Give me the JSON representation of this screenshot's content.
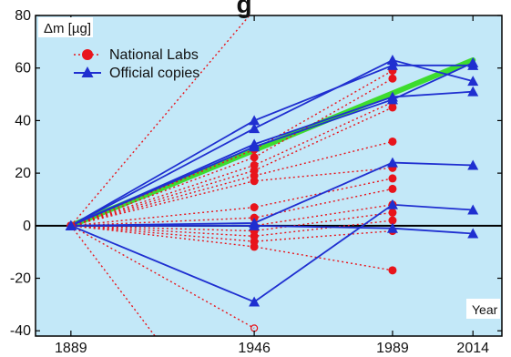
{
  "chart_data": {
    "type": "line",
    "title": "g",
    "ylabel": "Δm [µg]",
    "xlabel": "Year",
    "x_ticks": [
      1889,
      1946,
      1989,
      2014
    ],
    "y_ticks": [
      -40,
      -20,
      0,
      20,
      40,
      60,
      80
    ],
    "xlim": [
      1878,
      2023
    ],
    "ylim": [
      -42,
      80
    ],
    "legend": {
      "placement": "top-left",
      "entries": [
        {
          "label": "National Labs",
          "marker": "circle",
          "color": "#e8141b",
          "style": "dotted"
        },
        {
          "label": "Official copies",
          "marker": "triangle",
          "color": "#1f2fd0",
          "style": "solid"
        }
      ]
    },
    "trend": {
      "x": [
        1889,
        2014
      ],
      "y": [
        0,
        63
      ],
      "color": "#3ddc2e"
    },
    "official_copies": [
      {
        "x": [
          1889,
          1946,
          1989,
          2014
        ],
        "y": [
          0,
          40,
          61,
          61
        ]
      },
      {
        "x": [
          1889,
          1946,
          1989,
          2014
        ],
        "y": [
          0,
          37,
          63,
          55
        ]
      },
      {
        "x": [
          1889,
          1946,
          1989,
          2014
        ],
        "y": [
          0,
          31,
          49,
          51
        ]
      },
      {
        "x": [
          1889,
          1946,
          1989,
          2014
        ],
        "y": [
          0,
          30,
          48,
          62
        ]
      },
      {
        "x": [
          1889,
          1946,
          1989,
          2014
        ],
        "y": [
          0,
          1,
          24,
          23
        ]
      },
      {
        "x": [
          1889,
          1946,
          1989,
          2014
        ],
        "y": [
          0,
          0,
          -1,
          -3
        ]
      },
      {
        "x": [
          1889,
          1946,
          1989,
          2014
        ],
        "y": [
          0,
          -29,
          8,
          6
        ]
      }
    ],
    "national_labs": [
      {
        "x": [
          1889,
          1946,
          1989
        ],
        "y": [
          0,
          29,
          59
        ]
      },
      {
        "x": [
          1889,
          1946,
          1989
        ],
        "y": [
          0,
          26,
          56
        ]
      },
      {
        "x": [
          1889,
          1946,
          1989
        ],
        "y": [
          0,
          23,
          47
        ]
      },
      {
        "x": [
          1889,
          1946,
          1989
        ],
        "y": [
          0,
          21,
          45
        ]
      },
      {
        "x": [
          1889,
          1946,
          1989
        ],
        "y": [
          0,
          19,
          32
        ]
      },
      {
        "x": [
          1889,
          1946,
          1989
        ],
        "y": [
          0,
          17,
          22
        ]
      },
      {
        "x": [
          1889,
          1946,
          1989
        ],
        "y": [
          0,
          7,
          18
        ]
      },
      {
        "x": [
          1889,
          1946,
          1989
        ],
        "y": [
          0,
          3,
          14
        ]
      },
      {
        "x": [
          1889,
          1946,
          1989
        ],
        "y": [
          0,
          0,
          8
        ]
      },
      {
        "x": [
          1889,
          1946,
          1989
        ],
        "y": [
          0,
          -2,
          5
        ]
      },
      {
        "x": [
          1889,
          1946,
          1989
        ],
        "y": [
          0,
          -4,
          2
        ]
      },
      {
        "x": [
          1889,
          1946,
          1989
        ],
        "y": [
          0,
          -6,
          -2
        ]
      },
      {
        "x": [
          1889,
          1946,
          1989
        ],
        "y": [
          0,
          -8,
          -17
        ]
      }
    ],
    "national_labs_partial": [
      {
        "x": [
          1889,
          1946
        ],
        "y": [
          0,
          -39
        ],
        "hollow_end": true
      }
    ],
    "offchart_lines": [
      {
        "x": [
          1889,
          1948
        ],
        "y": [
          0,
          85
        ]
      },
      {
        "x": [
          1889,
          1917
        ],
        "y": [
          0,
          -45
        ]
      }
    ]
  }
}
